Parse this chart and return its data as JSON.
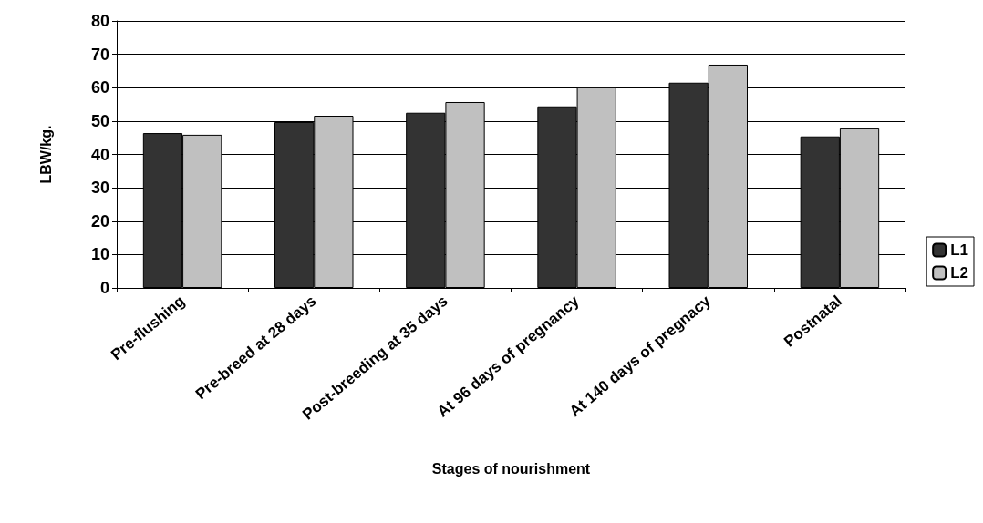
{
  "chart_data": {
    "type": "bar",
    "xlabel": "Stages of nourishment",
    "ylabel": "LBW/kg.",
    "categories": [
      "Pre-flushing",
      "Pre-breed at 28 days",
      "Post-breeding at 35 days",
      "At 96 days of pregnancy",
      "At 140 days of pregnacy",
      "Postnatal"
    ],
    "series": [
      {
        "name": "L1",
        "color": "#333333",
        "values": [
          46.4,
          49.7,
          52.5,
          54.4,
          61.5,
          45.4
        ]
      },
      {
        "name": "L2",
        "color": "#c0c0c0",
        "values": [
          45.9,
          51.6,
          55.7,
          60.1,
          66.9,
          47.8
        ]
      }
    ],
    "ylim": [
      0,
      80
    ],
    "yticks": [
      0,
      10,
      20,
      30,
      40,
      50,
      60,
      70,
      80
    ],
    "grid": "y",
    "legend": "right"
  }
}
